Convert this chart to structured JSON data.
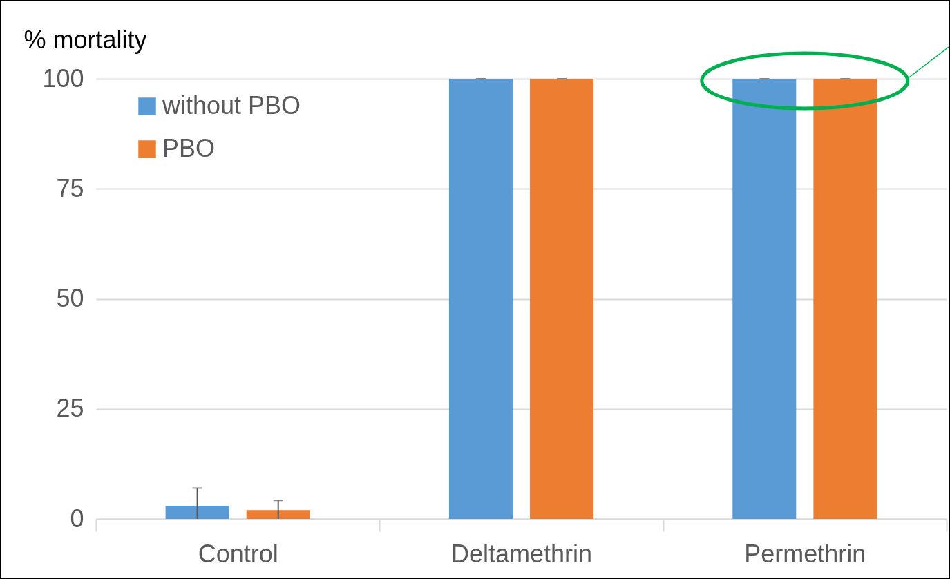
{
  "chart_data": {
    "type": "bar",
    "ylabel": "% mortality",
    "categories": [
      "Control",
      "Deltamethrin",
      "Permethrin"
    ],
    "series": [
      {
        "name": "without PBO",
        "color": "#5b9bd5",
        "values": [
          3,
          100,
          100
        ],
        "errors": [
          [
            0,
            7
          ],
          [
            100,
            100
          ],
          [
            100,
            100
          ]
        ]
      },
      {
        "name": "PBO",
        "color": "#ed7d31",
        "values": [
          2,
          100,
          100
        ],
        "errors": [
          [
            0,
            4.2
          ],
          [
            100,
            100
          ],
          [
            100,
            100
          ]
        ]
      }
    ],
    "ylim": [
      0,
      100
    ],
    "yticks": [
      0,
      25,
      50,
      75,
      100
    ],
    "grid": "y",
    "legend": "top left"
  }
}
